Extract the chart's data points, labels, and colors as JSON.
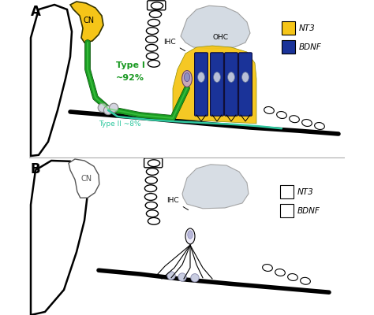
{
  "bg_color": "#ffffff",
  "panel_A": "A",
  "panel_B": "B",
  "CN_label": "CN",
  "IHC_label": "IHC",
  "OHC_label": "OHC",
  "type1_label": "Type I",
  "type1_pct": "~92%",
  "type2_label": "Type II ~8%",
  "type1_color": "#1a9922",
  "type2_color": "#30c8a0",
  "NT3_color": "#f5c518",
  "BDNF_color": "#1a3399",
  "NT3_label": "NT3",
  "BDNF_label": "BDNF",
  "gray_fill": "#c8d0d8",
  "tect_fill": "#d0d8e0"
}
